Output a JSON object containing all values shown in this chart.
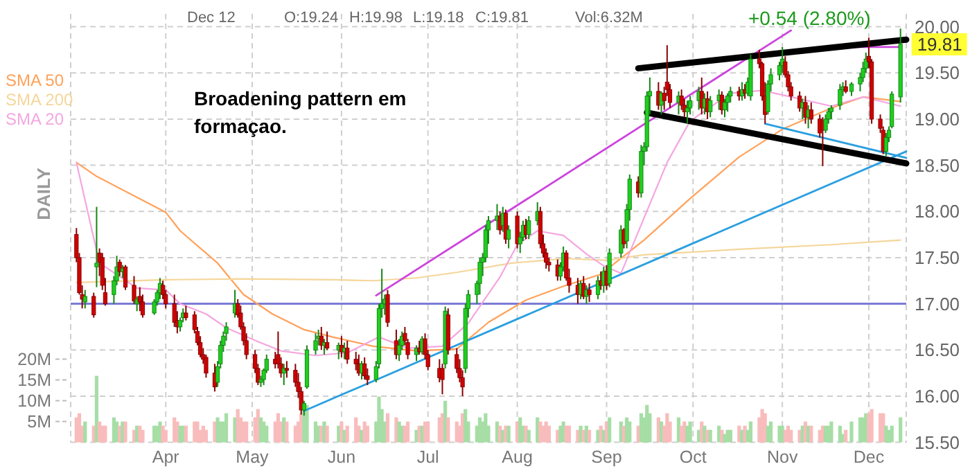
{
  "chart_data": {
    "type": "candlestick",
    "legend": "top left",
    "grid": true,
    "xlim": [
      "--02-28",
      "--12-14"
    ],
    "xticks": [
      {
        "value": "--04-01",
        "label": "Apr"
      },
      {
        "value": "--05-01",
        "label": "May"
      },
      {
        "value": "--06-01",
        "label": "Jun"
      },
      {
        "value": "--07-01",
        "label": "Jul"
      },
      {
        "value": "--08-01",
        "label": "Aug"
      },
      {
        "value": "--09-01",
        "label": "Sep"
      },
      {
        "value": "--10-01",
        "label": "Oct"
      },
      {
        "value": "--11-01",
        "label": "Nov"
      },
      {
        "value": "--12-01",
        "label": "Dec"
      }
    ],
    "ylim": [
      15.5,
      20.0
    ],
    "yticks": [
      {
        "value": 15.5,
        "label": "15.50"
      },
      {
        "value": 16.0,
        "label": "16.00"
      },
      {
        "value": 16.5,
        "label": "16.50"
      },
      {
        "value": 17.0,
        "label": "17.00"
      },
      {
        "value": 17.5,
        "label": "17.50"
      },
      {
        "value": 18.0,
        "label": "18.00"
      },
      {
        "value": 18.5,
        "label": "18.50"
      },
      {
        "value": 19.0,
        "label": "19.00"
      },
      {
        "value": 19.5,
        "label": "19.50"
      },
      {
        "value": 20.0,
        "label": "20.00"
      }
    ],
    "y2lim": [
      0,
      100
    ],
    "y2ticks": [
      {
        "value": 5,
        "label": "5M"
      },
      {
        "value": 10,
        "label": "10M"
      },
      {
        "value": 15,
        "label": "15M"
      },
      {
        "value": 20,
        "label": "20M"
      }
    ],
    "x": [
      "--03-01",
      "--03-02",
      "--03-03",
      "--03-04",
      "--03-07",
      "--03-08",
      "--03-09",
      "--03-10",
      "--03-11",
      "--03-14",
      "--03-15",
      "--03-16",
      "--03-17",
      "--03-18",
      "--03-21",
      "--03-22",
      "--03-23",
      "--03-24",
      "--03-28",
      "--03-29",
      "--03-30",
      "--03-31",
      "--04-01",
      "--04-04",
      "--04-05",
      "--04-06",
      "--04-07",
      "--04-08",
      "--04-11",
      "--04-12",
      "--04-13",
      "--04-14",
      "--04-15",
      "--04-18",
      "--04-19",
      "--04-20",
      "--04-21",
      "--04-22",
      "--04-25",
      "--04-26",
      "--04-27",
      "--04-28",
      "--04-29",
      "--05-02",
      "--05-03",
      "--05-04",
      "--05-05",
      "--05-06",
      "--05-09",
      "--05-10",
      "--05-11",
      "--05-12",
      "--05-13",
      "--05-16",
      "--05-17",
      "--05-18",
      "--05-19",
      "--05-20",
      "--05-23",
      "--05-24",
      "--05-25",
      "--05-26",
      "--05-27",
      "--05-31",
      "--06-01",
      "--06-02",
      "--06-03",
      "--06-06",
      "--06-07",
      "--06-08",
      "--06-09",
      "--06-10",
      "--06-13",
      "--06-14",
      "--06-15",
      "--06-16",
      "--06-17",
      "--06-20",
      "--06-21",
      "--06-22",
      "--06-23",
      "--06-24",
      "--06-27",
      "--06-28",
      "--06-29",
      "--06-30",
      "--07-01",
      "--07-05",
      "--07-06",
      "--07-07",
      "--07-08",
      "--07-11",
      "--07-12",
      "--07-13",
      "--07-14",
      "--07-15",
      "--07-18",
      "--07-19",
      "--07-20",
      "--07-21",
      "--07-22",
      "--07-25",
      "--07-26",
      "--07-27",
      "--07-28",
      "--07-29",
      "--08-01",
      "--08-02",
      "--08-03",
      "--08-04",
      "--08-05",
      "--08-08",
      "--08-09",
      "--08-10",
      "--08-11",
      "--08-12",
      "--08-15",
      "--08-16",
      "--08-17",
      "--08-18",
      "--08-19",
      "--08-22",
      "--08-23",
      "--08-24",
      "--08-25",
      "--08-26",
      "--08-29",
      "--08-30",
      "--08-31",
      "--09-01",
      "--09-02",
      "--09-06",
      "--09-07",
      "--09-08",
      "--09-09",
      "--09-12",
      "--09-13",
      "--09-14",
      "--09-15",
      "--09-16",
      "--09-19",
      "--09-20",
      "--09-21",
      "--09-22",
      "--09-23",
      "--09-26",
      "--09-27",
      "--09-28",
      "--09-29",
      "--09-30",
      "--10-03",
      "--10-04",
      "--10-05",
      "--10-06",
      "--10-07",
      "--10-10",
      "--10-11",
      "--10-12",
      "--10-13",
      "--10-14",
      "--10-17",
      "--10-18",
      "--10-19",
      "--10-20",
      "--10-21",
      "--10-24",
      "--10-25",
      "--10-26",
      "--10-27",
      "--10-28",
      "--10-31",
      "--11-01",
      "--11-02",
      "--11-03",
      "--11-04",
      "--11-07",
      "--11-08",
      "--11-09",
      "--11-10",
      "--11-11",
      "--11-14",
      "--11-15",
      "--11-16",
      "--11-17",
      "--11-18",
      "--11-21",
      "--11-22",
      "--11-23",
      "--11-25",
      "--11-28",
      "--11-29",
      "--11-30",
      "--12-01",
      "--12-02",
      "--12-05",
      "--12-06",
      "--12-07",
      "--12-08",
      "--12-09",
      "--12-12"
    ],
    "ohlc": [
      [
        17.75,
        17.82,
        17.45,
        17.5
      ],
      [
        17.5,
        17.55,
        17.1,
        17.12
      ],
      [
        17.1,
        17.2,
        16.95,
        17.05
      ],
      [
        17.02,
        17.15,
        16.95,
        17.08
      ],
      [
        17.08,
        17.12,
        16.85,
        16.88
      ],
      [
        17.4,
        18.05,
        17.18,
        17.44
      ],
      [
        17.55,
        17.6,
        17.3,
        17.45
      ],
      [
        17.5,
        17.55,
        17.15,
        17.2
      ],
      [
        17.12,
        17.28,
        16.98,
        17.0
      ],
      [
        17.1,
        17.3,
        17.0,
        17.25
      ],
      [
        17.25,
        17.52,
        17.2,
        17.4
      ],
      [
        17.45,
        17.48,
        17.3,
        17.35
      ],
      [
        17.35,
        17.42,
        17.28,
        17.38
      ],
      [
        17.4,
        17.42,
        17.15,
        17.18
      ],
      [
        17.2,
        17.3,
        17.0,
        17.03
      ],
      [
        17.0,
        17.08,
        16.92,
        17.05
      ],
      [
        17.08,
        17.18,
        16.92,
        17.02
      ],
      [
        17.02,
        17.1,
        16.85,
        16.88
      ],
      [
        16.9,
        17.05,
        16.88,
        17.02
      ],
      [
        17.02,
        17.15,
        16.98,
        17.12
      ],
      [
        17.12,
        17.28,
        17.05,
        17.22
      ],
      [
        17.2,
        17.25,
        17.05,
        17.1
      ],
      [
        17.1,
        17.15,
        16.95,
        17.0
      ],
      [
        17.0,
        17.1,
        16.75,
        16.8
      ],
      [
        16.82,
        16.92,
        16.68,
        16.75
      ],
      [
        16.75,
        16.85,
        16.7,
        16.82
      ],
      [
        16.85,
        16.95,
        16.8,
        16.9
      ],
      [
        16.9,
        16.98,
        16.82,
        16.85
      ],
      [
        16.88,
        16.92,
        16.68,
        16.72
      ],
      [
        16.7,
        16.75,
        16.55,
        16.58
      ],
      [
        16.58,
        16.65,
        16.42,
        16.45
      ],
      [
        16.45,
        16.52,
        16.35,
        16.4
      ],
      [
        16.42,
        16.45,
        16.2,
        16.25
      ],
      [
        16.25,
        16.35,
        16.05,
        16.1
      ],
      [
        16.15,
        16.38,
        16.1,
        16.32
      ],
      [
        16.35,
        16.6,
        16.3,
        16.55
      ],
      [
        16.55,
        16.7,
        16.48,
        16.65
      ],
      [
        16.68,
        16.8,
        16.6,
        16.75
      ],
      [
        16.9,
        17.15,
        16.85,
        17.0
      ],
      [
        17.0,
        17.05,
        16.85,
        16.88
      ],
      [
        16.9,
        16.98,
        16.72,
        16.75
      ],
      [
        16.75,
        16.8,
        16.55,
        16.6
      ],
      [
        16.6,
        16.68,
        16.4,
        16.45
      ],
      [
        16.45,
        16.5,
        16.25,
        16.3
      ],
      [
        16.3,
        16.35,
        16.12,
        16.15
      ],
      [
        16.15,
        16.22,
        16.1,
        16.18
      ],
      [
        16.18,
        16.3,
        16.12,
        16.28
      ],
      [
        16.28,
        16.45,
        16.25,
        16.4
      ],
      [
        16.4,
        16.48,
        16.3,
        16.35
      ],
      [
        16.45,
        16.7,
        16.3,
        16.35
      ],
      [
        16.35,
        16.42,
        16.2,
        16.25
      ],
      [
        16.25,
        16.35,
        16.12,
        16.3
      ],
      [
        16.3,
        16.38,
        16.2,
        16.28
      ],
      [
        16.28,
        16.35,
        16.1,
        16.15
      ],
      [
        16.15,
        16.25,
        15.98,
        16.05
      ],
      [
        16.05,
        16.1,
        15.8,
        15.85
      ],
      [
        15.85,
        15.95,
        15.79,
        15.92
      ],
      [
        16.1,
        16.55,
        16.08,
        16.5
      ],
      [
        16.5,
        16.68,
        16.45,
        16.6
      ],
      [
        16.62,
        16.72,
        16.55,
        16.65
      ],
      [
        16.65,
        16.75,
        16.5,
        16.55
      ],
      [
        16.55,
        16.62,
        16.45,
        16.58
      ],
      [
        16.58,
        16.7,
        16.5,
        16.52
      ],
      [
        16.5,
        16.58,
        16.4,
        16.55
      ],
      [
        16.55,
        16.65,
        16.42,
        16.48
      ],
      [
        16.48,
        16.58,
        16.4,
        16.52
      ],
      [
        16.52,
        16.6,
        16.35,
        16.4
      ],
      [
        16.4,
        16.48,
        16.28,
        16.35
      ],
      [
        16.35,
        16.45,
        16.22,
        16.25
      ],
      [
        16.25,
        16.38,
        16.18,
        16.35
      ],
      [
        16.35,
        16.42,
        16.18,
        16.22
      ],
      [
        16.22,
        16.3,
        16.12,
        16.18
      ],
      [
        16.18,
        16.38,
        16.15,
        16.32
      ],
      [
        16.35,
        17.0,
        16.3,
        16.95
      ],
      [
        16.95,
        17.38,
        16.85,
        17.0
      ],
      [
        17.0,
        17.1,
        16.88,
        17.05
      ],
      [
        17.1,
        17.15,
        16.75,
        16.8
      ],
      [
        16.6,
        16.72,
        16.4,
        16.45
      ],
      [
        16.45,
        16.62,
        16.38,
        16.55
      ],
      [
        16.55,
        16.7,
        16.5,
        16.65
      ],
      [
        16.68,
        16.75,
        16.55,
        16.6
      ],
      [
        16.58,
        16.62,
        16.4,
        16.45
      ],
      [
        16.45,
        16.55,
        16.38,
        16.52
      ],
      [
        16.52,
        16.6,
        16.45,
        16.48
      ],
      [
        16.48,
        16.65,
        16.45,
        16.62
      ],
      [
        16.62,
        16.68,
        16.4,
        16.45
      ],
      [
        16.45,
        16.5,
        16.28,
        16.32
      ],
      [
        16.3,
        16.4,
        16.15,
        16.2
      ],
      [
        16.3,
        16.35,
        16.02,
        16.18
      ],
      [
        16.35,
        16.97,
        16.3,
        16.92
      ],
      [
        16.88,
        16.95,
        16.45,
        16.5
      ],
      [
        16.45,
        16.52,
        16.25,
        16.3
      ],
      [
        16.3,
        16.4,
        16.15,
        16.2
      ],
      [
        16.2,
        16.28,
        16.0,
        16.1
      ],
      [
        16.3,
        17.0,
        16.25,
        16.95
      ],
      [
        16.95,
        17.15,
        16.85,
        17.1
      ],
      [
        17.1,
        17.25,
        17.0,
        17.22
      ],
      [
        17.22,
        17.5,
        17.1,
        17.45
      ],
      [
        17.45,
        17.55,
        17.3,
        17.5
      ],
      [
        17.5,
        17.85,
        17.45,
        17.8
      ],
      [
        17.8,
        17.95,
        17.65,
        17.9
      ],
      [
        17.9,
        18.08,
        17.8,
        17.95
      ],
      [
        17.95,
        18.0,
        17.75,
        17.8
      ],
      [
        17.85,
        18.05,
        17.78,
        17.98
      ],
      [
        17.98,
        18.02,
        17.65,
        17.7
      ],
      [
        17.7,
        17.85,
        17.6,
        17.8
      ],
      [
        17.95,
        18.0,
        17.6,
        17.65
      ],
      [
        17.65,
        17.78,
        17.55,
        17.72
      ],
      [
        17.72,
        17.9,
        17.68,
        17.85
      ],
      [
        17.85,
        17.92,
        17.7,
        17.75
      ],
      [
        17.75,
        17.95,
        17.7,
        17.9
      ],
      [
        17.9,
        18.1,
        17.85,
        18.0
      ],
      [
        18.0,
        18.05,
        17.6,
        17.65
      ],
      [
        17.65,
        17.75,
        17.5,
        17.55
      ],
      [
        17.55,
        17.6,
        17.38,
        17.45
      ],
      [
        17.45,
        17.5,
        17.35,
        17.42
      ],
      [
        17.42,
        17.48,
        17.25,
        17.3
      ],
      [
        17.3,
        17.45,
        17.25,
        17.4
      ],
      [
        17.4,
        17.62,
        17.35,
        17.55
      ],
      [
        17.55,
        17.58,
        17.25,
        17.28
      ],
      [
        17.28,
        17.38,
        17.12,
        17.2
      ],
      [
        17.2,
        17.28,
        17.0,
        17.1
      ],
      [
        17.1,
        17.25,
        17.05,
        17.22
      ],
      [
        17.22,
        17.3,
        17.05,
        17.08
      ],
      [
        17.08,
        17.2,
        17.0,
        17.15
      ],
      [
        17.15,
        17.22,
        17.02,
        17.1
      ],
      [
        17.1,
        17.3,
        17.05,
        17.25
      ],
      [
        17.25,
        17.35,
        17.15,
        17.2
      ],
      [
        17.2,
        17.4,
        17.12,
        17.35
      ],
      [
        17.35,
        17.42,
        17.15,
        17.2
      ],
      [
        17.22,
        17.6,
        17.18,
        17.55
      ],
      [
        17.55,
        17.85,
        17.5,
        17.8
      ],
      [
        17.8,
        17.82,
        17.6,
        17.65
      ],
      [
        17.68,
        18.08,
        17.6,
        18.02
      ],
      [
        18.02,
        18.4,
        17.9,
        18.35
      ],
      [
        18.32,
        18.38,
        18.15,
        18.2
      ],
      [
        18.2,
        18.72,
        18.15,
        18.65
      ],
      [
        18.65,
        18.75,
        18.5,
        18.7
      ],
      [
        18.7,
        19.3,
        18.65,
        19.25
      ],
      [
        19.25,
        19.45,
        19.05,
        19.3
      ],
      [
        19.3,
        19.4,
        19.1,
        19.15
      ],
      [
        19.15,
        19.3,
        19.05,
        19.28
      ],
      [
        19.28,
        19.35,
        19.1,
        19.2
      ],
      [
        19.4,
        19.8,
        19.25,
        19.32
      ],
      [
        19.32,
        19.38,
        19.12,
        19.18
      ],
      [
        19.18,
        19.3,
        19.05,
        19.25
      ],
      [
        19.25,
        19.32,
        19.1,
        19.15
      ],
      [
        19.15,
        19.22,
        19.02,
        19.08
      ],
      [
        19.08,
        19.2,
        18.95,
        19.12
      ],
      [
        19.12,
        19.25,
        19.05,
        19.2
      ],
      [
        19.2,
        19.35,
        19.1,
        19.3
      ],
      [
        19.3,
        19.45,
        19.05,
        19.12
      ],
      [
        19.12,
        19.28,
        19.05,
        19.22
      ],
      [
        19.22,
        19.3,
        19.0,
        19.08
      ],
      [
        19.08,
        19.25,
        19.02,
        19.2
      ],
      [
        19.2,
        19.32,
        19.1,
        19.26
      ],
      [
        19.26,
        19.3,
        19.05,
        19.1
      ],
      [
        19.1,
        19.22,
        19.02,
        19.18
      ],
      [
        19.18,
        19.28,
        19.08,
        19.25
      ],
      [
        19.25,
        19.35,
        19.18,
        19.3
      ],
      [
        19.3,
        19.35,
        19.2,
        19.25
      ],
      [
        19.25,
        19.4,
        19.2,
        19.32
      ],
      [
        19.32,
        19.38,
        19.22,
        19.28
      ],
      [
        19.28,
        19.45,
        19.25,
        19.4
      ],
      [
        19.25,
        19.7,
        19.2,
        19.65
      ],
      [
        19.65,
        19.75,
        19.55,
        19.6
      ],
      [
        19.6,
        19.62,
        19.2,
        19.25
      ],
      [
        19.25,
        19.4,
        18.95,
        19.05
      ],
      [
        19.08,
        19.42,
        19.05,
        19.38
      ],
      [
        19.38,
        19.55,
        19.3,
        19.48
      ],
      [
        19.48,
        19.62,
        19.42,
        19.58
      ],
      [
        19.58,
        19.78,
        19.5,
        19.65
      ],
      [
        19.62,
        19.68,
        19.45,
        19.48
      ],
      [
        19.48,
        19.52,
        19.3,
        19.35
      ],
      [
        19.35,
        19.4,
        19.2,
        19.25
      ],
      [
        19.25,
        19.3,
        19.08,
        19.12
      ],
      [
        19.12,
        19.22,
        19.0,
        19.18
      ],
      [
        19.18,
        19.25,
        18.95,
        19.02
      ],
      [
        19.02,
        19.15,
        18.9,
        19.1
      ],
      [
        19.1,
        19.18,
        18.95,
        19.0
      ],
      [
        19.0,
        19.05,
        18.8,
        18.85
      ],
      [
        18.98,
        19.02,
        18.49,
        18.88
      ],
      [
        18.88,
        19.05,
        18.85,
        19.0
      ],
      [
        19.0,
        19.12,
        18.95,
        19.08
      ],
      [
        19.08,
        19.15,
        19.0,
        19.12
      ],
      [
        19.15,
        19.38,
        19.1,
        19.32
      ],
      [
        19.32,
        19.4,
        19.25,
        19.35
      ],
      [
        19.35,
        19.42,
        19.28,
        19.3
      ],
      [
        19.3,
        19.4,
        19.25,
        19.38
      ],
      [
        19.38,
        19.5,
        19.3,
        19.45
      ],
      [
        19.45,
        19.62,
        19.4,
        19.55
      ],
      [
        19.55,
        19.72,
        19.5,
        19.65
      ],
      [
        19.68,
        19.88,
        19.55,
        19.62
      ],
      [
        19.62,
        19.65,
        18.95,
        19.0
      ],
      [
        19.0,
        19.05,
        18.85,
        18.9
      ],
      [
        18.88,
        18.92,
        18.62,
        18.65
      ],
      [
        18.65,
        18.85,
        18.6,
        18.8
      ],
      [
        18.8,
        18.92,
        18.75,
        18.88
      ],
      [
        18.92,
        19.3,
        18.9,
        19.27
      ],
      [
        19.24,
        19.98,
        19.18,
        19.81
      ]
    ],
    "colors": [
      "#d00000",
      "#d00000",
      "#d00000",
      "#1fcf1f",
      "#d00000",
      "#1fcf1f",
      "#d00000",
      "#d00000",
      "#d00000",
      "#1fcf1f",
      "#1fcf1f",
      "#d00000",
      "#1fcf1f",
      "#d00000",
      "#d00000",
      "#1fcf1f",
      "#d00000",
      "#d00000",
      "#1fcf1f",
      "#1fcf1f",
      "#1fcf1f",
      "#d00000",
      "#d00000",
      "#d00000",
      "#d00000",
      "#1fcf1f",
      "#1fcf1f",
      "#d00000",
      "#d00000",
      "#d00000",
      "#d00000",
      "#d00000",
      "#d00000",
      "#d00000",
      "#1fcf1f",
      "#1fcf1f",
      "#1fcf1f",
      "#1fcf1f",
      "#1fcf1f",
      "#d00000",
      "#d00000",
      "#d00000",
      "#d00000",
      "#d00000",
      "#d00000",
      "#1fcf1f",
      "#1fcf1f",
      "#1fcf1f",
      "#d00000",
      "#d00000",
      "#d00000",
      "#1fcf1f",
      "#d00000",
      "#d00000",
      "#d00000",
      "#d00000",
      "#1fcf1f",
      "#1fcf1f",
      "#1fcf1f",
      "#1fcf1f",
      "#d00000",
      "#1fcf1f",
      "#d00000",
      "#1fcf1f",
      "#d00000",
      "#1fcf1f",
      "#d00000",
      "#d00000",
      "#d00000",
      "#1fcf1f",
      "#d00000",
      "#d00000",
      "#1fcf1f",
      "#1fcf1f",
      "#1fcf1f",
      "#1fcf1f",
      "#d00000",
      "#d00000",
      "#1fcf1f",
      "#1fcf1f",
      "#d00000",
      "#d00000",
      "#1fcf1f",
      "#d00000",
      "#1fcf1f",
      "#d00000",
      "#d00000",
      "#d00000",
      "#d00000",
      "#1fcf1f",
      "#d00000",
      "#d00000",
      "#d00000",
      "#d00000",
      "#1fcf1f",
      "#1fcf1f",
      "#1fcf1f",
      "#1fcf1f",
      "#1fcf1f",
      "#1fcf1f",
      "#1fcf1f",
      "#1fcf1f",
      "#d00000",
      "#1fcf1f",
      "#d00000",
      "#1fcf1f",
      "#d00000",
      "#1fcf1f",
      "#1fcf1f",
      "#d00000",
      "#1fcf1f",
      "#1fcf1f",
      "#d00000",
      "#d00000",
      "#d00000",
      "#d00000",
      "#d00000",
      "#1fcf1f",
      "#1fcf1f",
      "#d00000",
      "#d00000",
      "#d00000",
      "#1fcf1f",
      "#d00000",
      "#1fcf1f",
      "#d00000",
      "#1fcf1f",
      "#d00000",
      "#1fcf1f",
      "#d00000",
      "#1fcf1f",
      "#1fcf1f",
      "#d00000",
      "#1fcf1f",
      "#1fcf1f",
      "#d00000",
      "#1fcf1f",
      "#1fcf1f",
      "#1fcf1f",
      "#1fcf1f",
      "#d00000",
      "#1fcf1f",
      "#d00000",
      "#d00000",
      "#d00000",
      "#1fcf1f",
      "#d00000",
      "#d00000",
      "#1fcf1f",
      "#1fcf1f",
      "#1fcf1f",
      "#d00000",
      "#1fcf1f",
      "#d00000",
      "#1fcf1f",
      "#1fcf1f",
      "#d00000",
      "#1fcf1f",
      "#1fcf1f",
      "#1fcf1f",
      "#d00000",
      "#1fcf1f",
      "#d00000",
      "#1fcf1f",
      "#1fcf1f",
      "#d00000",
      "#d00000",
      "#d00000",
      "#1fcf1f",
      "#1fcf1f",
      "#1fcf1f",
      "#1fcf1f",
      "#d00000",
      "#d00000",
      "#d00000",
      "#d00000",
      "#1fcf1f",
      "#d00000",
      "#1fcf1f",
      "#d00000",
      "#d00000",
      "#d00000",
      "#1fcf1f",
      "#1fcf1f",
      "#1fcf1f",
      "#1fcf1f",
      "#1fcf1f",
      "#d00000",
      "#1fcf1f",
      "#1fcf1f",
      "#1fcf1f",
      "#1fcf1f",
      "#d00000",
      "#d00000",
      "#d00000",
      "#d00000",
      "#1fcf1f",
      "#1fcf1f",
      "#1fcf1f",
      "#1fcf1f"
    ],
    "series": [
      {
        "type": "bar",
        "axis": "y2",
        "values": [
          6,
          7,
          4,
          5,
          4,
          16,
          5,
          4,
          4,
          6,
          5,
          4,
          5,
          5,
          3,
          4,
          4,
          3,
          4,
          4,
          5,
          4,
          3,
          6,
          5,
          4,
          4,
          4,
          5,
          5,
          3,
          4,
          3,
          5,
          6,
          5,
          5,
          7,
          6,
          8,
          6,
          5,
          5,
          6,
          8,
          6,
          5,
          4,
          5,
          7,
          5,
          6,
          5,
          4,
          5,
          7,
          8,
          9,
          5,
          4,
          4,
          5,
          4,
          4,
          5,
          3,
          4,
          6,
          4,
          3,
          5,
          4,
          5,
          11,
          8,
          5,
          7,
          6,
          5,
          4,
          4,
          5,
          3,
          4,
          4,
          5,
          5,
          6,
          7,
          10,
          6,
          5,
          4,
          7,
          8,
          5,
          4,
          6,
          5,
          7,
          4,
          5,
          4,
          3,
          4,
          4,
          5,
          6,
          4,
          4,
          3,
          6,
          5,
          4,
          5,
          4,
          3,
          4,
          5,
          4,
          4,
          3,
          4,
          3,
          4,
          3,
          3,
          4,
          3,
          5,
          6,
          5,
          4,
          6,
          5,
          4,
          7,
          6,
          9,
          7,
          6,
          5,
          4,
          7,
          5,
          6,
          4,
          5,
          4,
          5,
          3,
          5,
          4,
          3,
          3,
          4,
          3,
          2,
          3,
          3,
          4,
          3,
          4,
          3,
          5,
          6,
          8,
          7,
          4,
          5,
          4,
          4,
          3,
          4,
          3,
          3,
          4,
          5,
          4,
          4,
          3,
          4,
          4,
          4,
          5,
          4,
          2,
          3,
          5,
          6,
          6,
          7,
          7,
          8,
          7,
          7,
          4,
          3,
          4,
          6
        ],
        "colors": [
          "#f9bcbc",
          "#f9bcbc",
          "#f9bcbc",
          "#a6dea6",
          "#f9bcbc",
          "#a6dea6",
          "#f9bcbc",
          "#f9bcbc",
          "#f9bcbc",
          "#a6dea6",
          "#a6dea6",
          "#f9bcbc",
          "#a6dea6",
          "#f9bcbc",
          "#f9bcbc",
          "#a6dea6",
          "#f9bcbc",
          "#f9bcbc",
          "#a6dea6",
          "#a6dea6",
          "#a6dea6",
          "#f9bcbc",
          "#f9bcbc",
          "#f9bcbc",
          "#f9bcbc",
          "#a6dea6",
          "#a6dea6",
          "#f9bcbc",
          "#f9bcbc",
          "#f9bcbc",
          "#f9bcbc",
          "#f9bcbc",
          "#f9bcbc",
          "#f9bcbc",
          "#a6dea6",
          "#a6dea6",
          "#a6dea6",
          "#a6dea6",
          "#a6dea6",
          "#f9bcbc",
          "#f9bcbc",
          "#f9bcbc",
          "#f9bcbc",
          "#f9bcbc",
          "#f9bcbc",
          "#a6dea6",
          "#a6dea6",
          "#a6dea6",
          "#f9bcbc",
          "#f9bcbc",
          "#f9bcbc",
          "#a6dea6",
          "#f9bcbc",
          "#f9bcbc",
          "#f9bcbc",
          "#f9bcbc",
          "#a6dea6",
          "#a6dea6",
          "#a6dea6",
          "#a6dea6",
          "#f9bcbc",
          "#a6dea6",
          "#f9bcbc",
          "#a6dea6",
          "#f9bcbc",
          "#a6dea6",
          "#f9bcbc",
          "#f9bcbc",
          "#f9bcbc",
          "#a6dea6",
          "#f9bcbc",
          "#f9bcbc",
          "#a6dea6",
          "#a6dea6",
          "#a6dea6",
          "#a6dea6",
          "#f9bcbc",
          "#f9bcbc",
          "#a6dea6",
          "#a6dea6",
          "#f9bcbc",
          "#f9bcbc",
          "#a6dea6",
          "#f9bcbc",
          "#a6dea6",
          "#f9bcbc",
          "#f9bcbc",
          "#f9bcbc",
          "#f9bcbc",
          "#a6dea6",
          "#f9bcbc",
          "#f9bcbc",
          "#f9bcbc",
          "#f9bcbc",
          "#a6dea6",
          "#a6dea6",
          "#a6dea6",
          "#a6dea6",
          "#a6dea6",
          "#a6dea6",
          "#a6dea6",
          "#a6dea6",
          "#f9bcbc",
          "#a6dea6",
          "#f9bcbc",
          "#a6dea6",
          "#f9bcbc",
          "#a6dea6",
          "#a6dea6",
          "#f9bcbc",
          "#a6dea6",
          "#a6dea6",
          "#f9bcbc",
          "#f9bcbc",
          "#f9bcbc",
          "#f9bcbc",
          "#f9bcbc",
          "#a6dea6",
          "#a6dea6",
          "#f9bcbc",
          "#f9bcbc",
          "#f9bcbc",
          "#a6dea6",
          "#f9bcbc",
          "#a6dea6",
          "#f9bcbc",
          "#a6dea6",
          "#f9bcbc",
          "#a6dea6",
          "#f9bcbc",
          "#a6dea6",
          "#a6dea6",
          "#f9bcbc",
          "#a6dea6",
          "#a6dea6",
          "#f9bcbc",
          "#a6dea6",
          "#a6dea6",
          "#a6dea6",
          "#a6dea6",
          "#f9bcbc",
          "#a6dea6",
          "#f9bcbc",
          "#f9bcbc",
          "#f9bcbc",
          "#a6dea6",
          "#f9bcbc",
          "#f9bcbc",
          "#a6dea6",
          "#a6dea6",
          "#a6dea6",
          "#f9bcbc",
          "#a6dea6",
          "#f9bcbc",
          "#a6dea6",
          "#a6dea6",
          "#f9bcbc",
          "#a6dea6",
          "#a6dea6",
          "#a6dea6",
          "#f9bcbc",
          "#a6dea6",
          "#f9bcbc",
          "#a6dea6",
          "#a6dea6",
          "#f9bcbc",
          "#f9bcbc",
          "#f9bcbc",
          "#a6dea6",
          "#a6dea6",
          "#a6dea6",
          "#a6dea6",
          "#f9bcbc",
          "#f9bcbc",
          "#f9bcbc",
          "#f9bcbc",
          "#a6dea6",
          "#f9bcbc",
          "#a6dea6",
          "#f9bcbc",
          "#f9bcbc",
          "#f9bcbc",
          "#a6dea6",
          "#a6dea6",
          "#a6dea6",
          "#a6dea6",
          "#a6dea6",
          "#f9bcbc",
          "#a6dea6",
          "#a6dea6",
          "#a6dea6",
          "#a6dea6",
          "#f9bcbc",
          "#f9bcbc",
          "#f9bcbc",
          "#f9bcbc",
          "#a6dea6",
          "#a6dea6",
          "#a6dea6",
          "#a6dea6"
        ]
      },
      {
        "type": "line",
        "name": "SMA 50",
        "color": "#ffa15a",
        "x": [
          "--03-01",
          "--03-08",
          "--04-01",
          "--04-06",
          "--04-19",
          "--04-28",
          "--05-08",
          "--05-19",
          "--05-29",
          "--06-12",
          "--06-27",
          "--07-11",
          "--07-22",
          "--08-04",
          "--08-17",
          "--08-30",
          "--09-14",
          "--09-30",
          "--10-17",
          "--11-01",
          "--11-18",
          "--11-29",
          "--12-12"
        ],
        "values": [
          18.53,
          18.38,
          17.99,
          17.79,
          17.44,
          17.1,
          16.89,
          16.72,
          16.64,
          16.54,
          16.49,
          16.51,
          16.8,
          17.04,
          17.19,
          17.32,
          17.69,
          18.14,
          18.59,
          18.89,
          19.12,
          19.24,
          19.19
        ]
      },
      {
        "type": "line",
        "name": "SMA 200",
        "color": "#f5d69a",
        "x": [
          "--03-01",
          "--04-01",
          "--04-28",
          "--05-29",
          "--06-12",
          "--06-27",
          "--07-11",
          "--07-30",
          "--08-18",
          "--09-01",
          "--09-14",
          "--10-17",
          "--11-18",
          "--12-12"
        ],
        "values": [
          17.23,
          17.26,
          17.27,
          17.26,
          17.25,
          17.28,
          17.34,
          17.44,
          17.49,
          17.47,
          17.53,
          17.59,
          17.64,
          17.69
        ]
      },
      {
        "type": "line",
        "name": "SMA 20",
        "color": "#f4a6e0",
        "x": [
          "--03-01",
          "--03-09",
          "--03-22",
          "--04-01",
          "--04-06",
          "--04-15",
          "--04-22",
          "--05-03",
          "--05-11",
          "--05-23",
          "--06-03",
          "--06-14",
          "--06-24",
          "--07-06",
          "--07-15",
          "--07-26",
          "--08-01",
          "--08-08",
          "--08-17",
          "--08-25",
          "--08-31",
          "--09-06",
          "--09-14",
          "--09-22",
          "--09-30",
          "--10-14",
          "--10-25",
          "--11-04",
          "--11-18",
          "--11-29",
          "--12-12"
        ],
        "values": [
          18.53,
          17.44,
          17.17,
          17.15,
          17.0,
          16.89,
          16.74,
          16.59,
          16.49,
          16.44,
          16.47,
          16.64,
          16.52,
          16.54,
          16.79,
          17.29,
          17.64,
          17.79,
          17.74,
          17.54,
          17.41,
          17.33,
          17.93,
          18.53,
          18.98,
          19.28,
          19.31,
          19.24,
          19.14,
          19.24,
          19.14
        ]
      },
      {
        "type": "line",
        "color": "#cc44dd",
        "x": [
          "--06-13",
          "--11-04"
        ],
        "values": [
          17.09,
          19.96
        ]
      },
      {
        "type": "line",
        "color": "#cc44dd",
        "x": [
          "--11-21",
          "--12-12"
        ],
        "values": [
          19.78,
          19.78
        ]
      },
      {
        "type": "line",
        "color": "#2a9fe0",
        "x": [
          "--05-19",
          "--12-14"
        ],
        "values": [
          15.84,
          18.65
        ]
      },
      {
        "type": "line",
        "color": "#2a9fe0",
        "x": [
          "--10-26",
          "--12-14"
        ],
        "values": [
          18.95,
          18.58
        ]
      },
      {
        "type": "line",
        "color": "#000000",
        "x": [
          "--09-12",
          "--12-14"
        ],
        "values": [
          19.55,
          19.86
        ]
      },
      {
        "type": "line",
        "color": "#000000",
        "x": [
          "--09-15",
          "--12-14"
        ],
        "values": [
          19.07,
          18.52
        ]
      }
    ],
    "ref_lines": [
      {
        "axis": "y",
        "value": 17.0,
        "color": "#7b7bd6"
      }
    ],
    "annotations": [
      "Dec 12",
      "O:19.24",
      "H:19.98",
      "L:19.18",
      "C:19.81",
      "Vol:6.32M",
      "+0.54 (2.80%)",
      "DAILY",
      "Broadening pattern em formaçao.",
      {
        "text": "19.81",
        "x": "--12-12",
        "y": 19.81
      }
    ]
  }
}
